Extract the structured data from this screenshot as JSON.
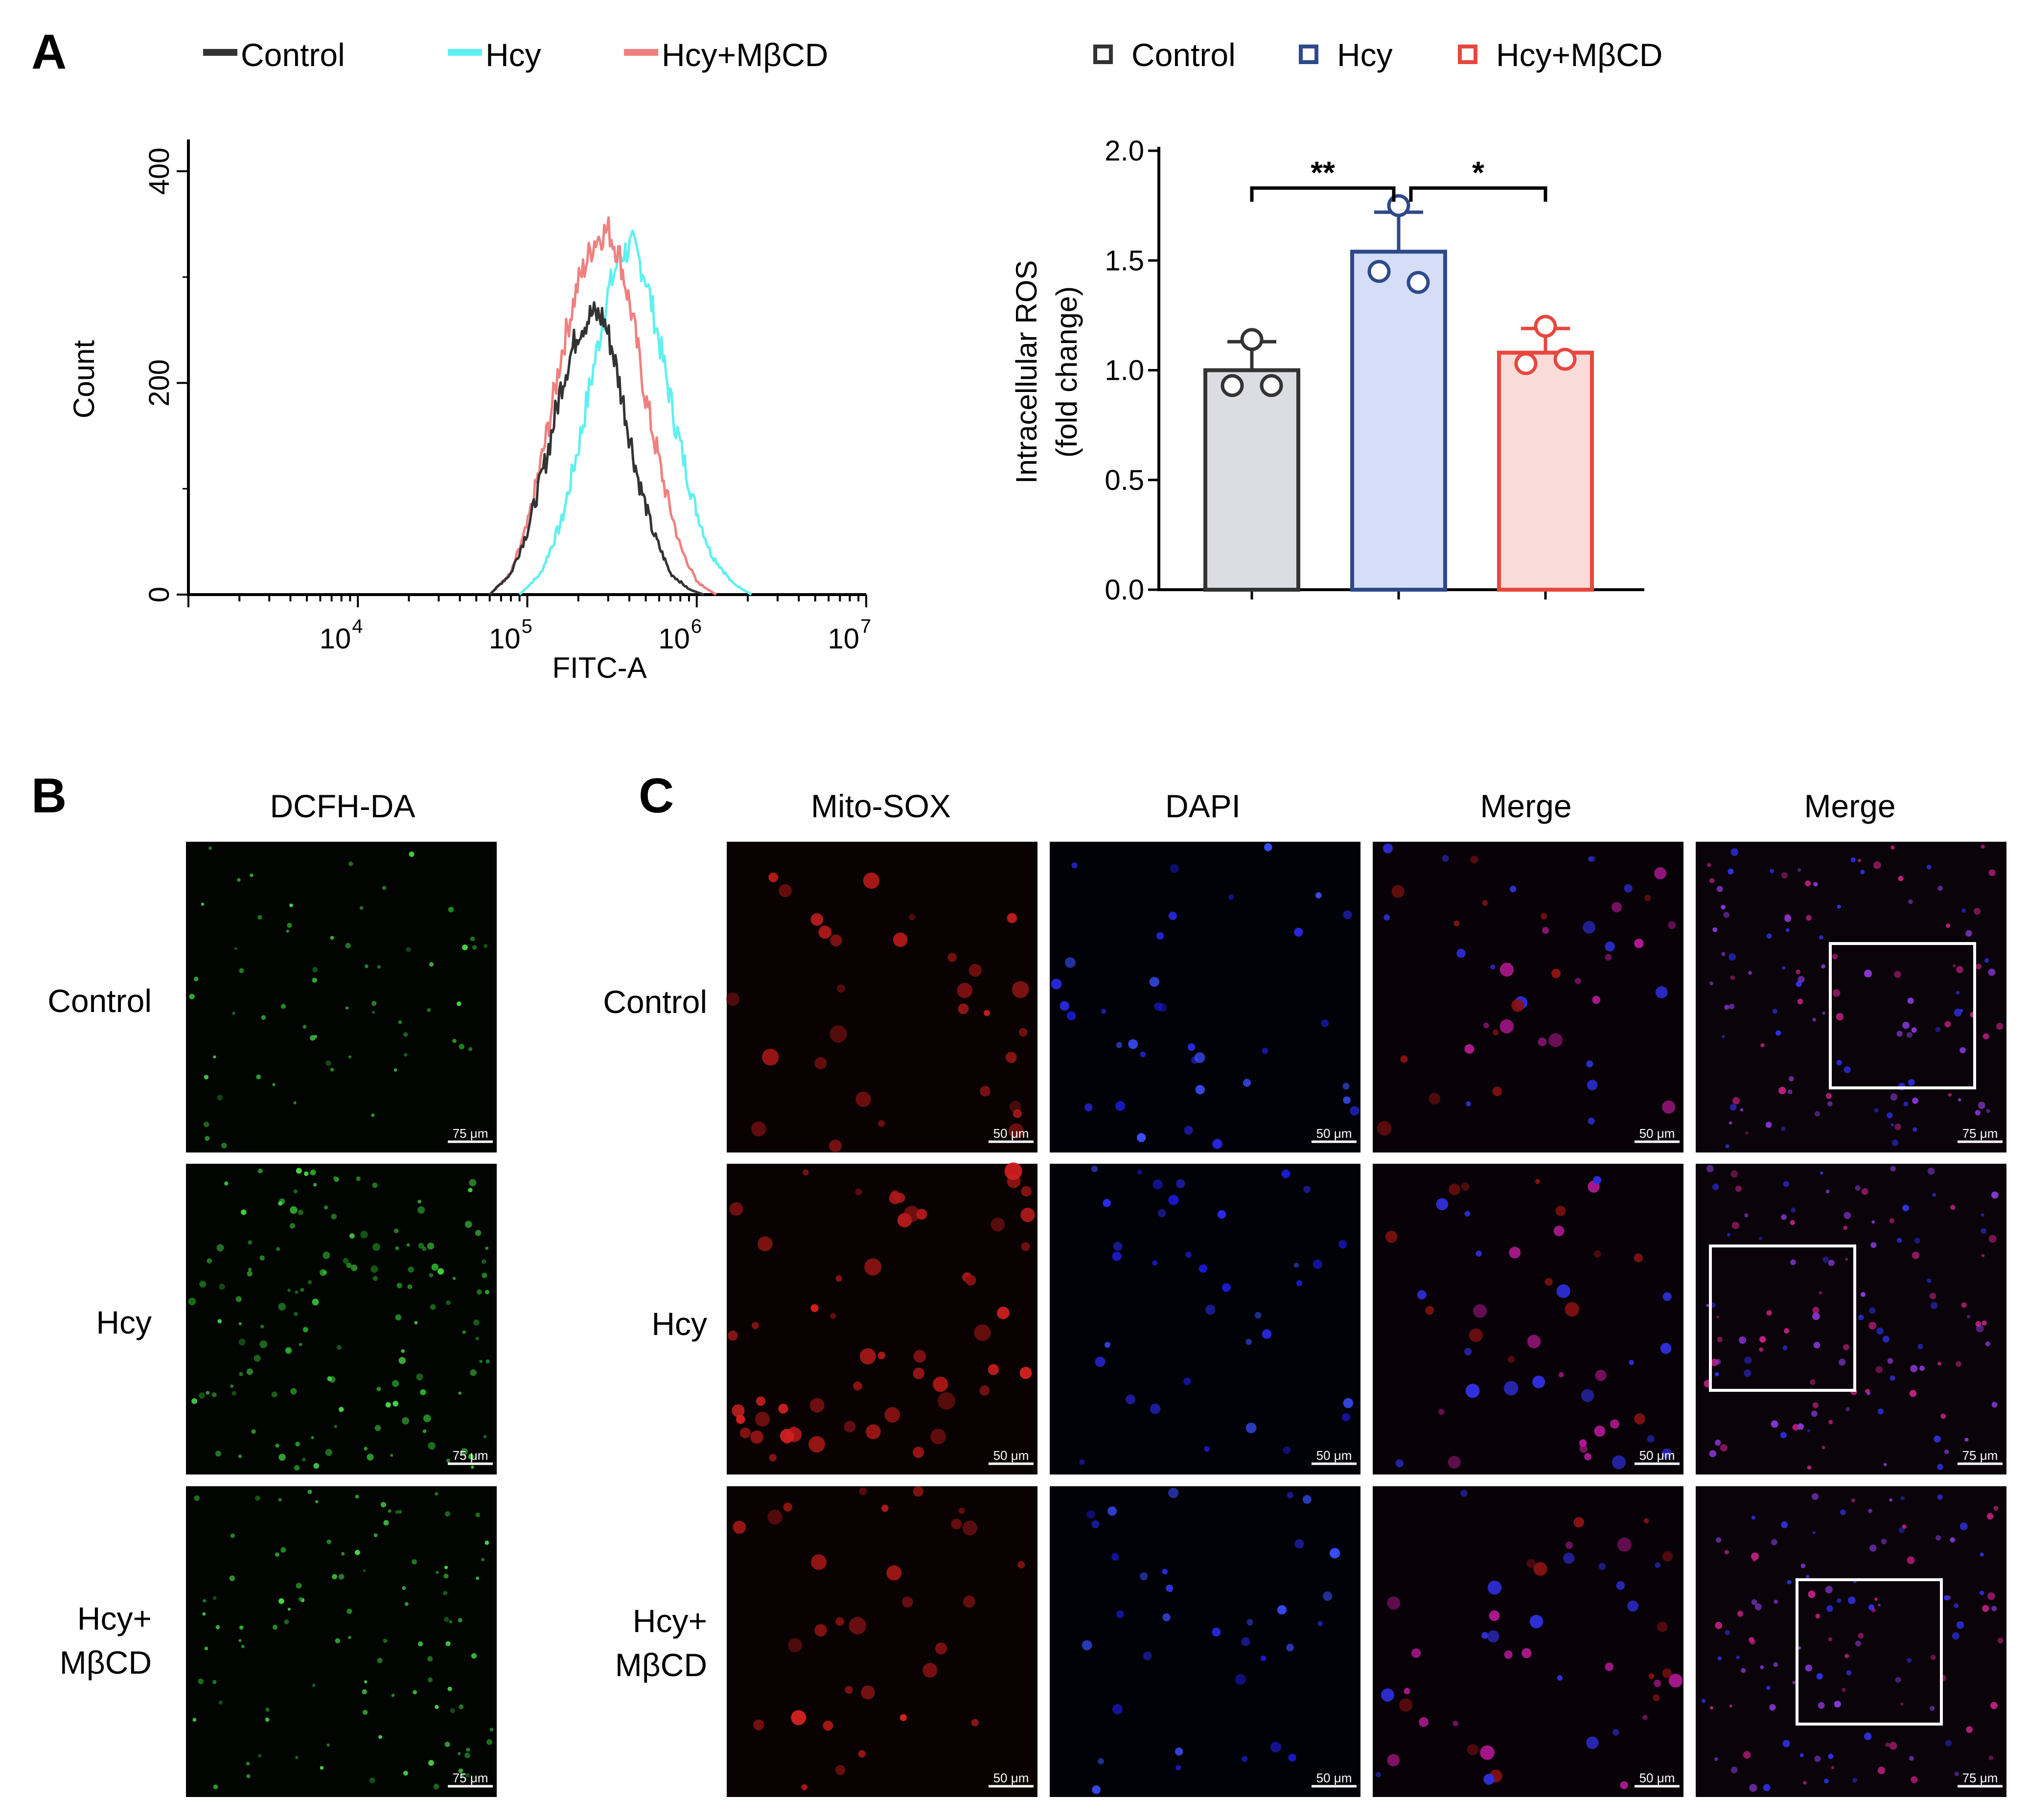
{
  "panels": {
    "A": {
      "letter": "A",
      "histogram_legend": [
        {
          "label": "Control",
          "color": "#333333"
        },
        {
          "label": "Hcy",
          "color": "#5ff0f0"
        },
        {
          "label": "Hcy+MβCD",
          "color": "#f08080"
        }
      ],
      "bar_legend": [
        {
          "label": "Control",
          "color": "#333333"
        },
        {
          "label": "Hcy",
          "color": "#2e4a8a"
        },
        {
          "label": "Hcy+MβCD",
          "color": "#e8473d"
        }
      ]
    },
    "B": {
      "letter": "B",
      "column_title": "DCFH-DA",
      "row_labels": [
        "Control",
        "Hcy",
        "Hcy+",
        "MβCD"
      ],
      "scale": "75 μm"
    },
    "C": {
      "letter": "C",
      "column_titles": [
        "Mito-SOX",
        "DAPI",
        "Merge",
        "Merge"
      ],
      "row_labels": [
        "Control",
        "Hcy",
        "Hcy+",
        "MβCD"
      ],
      "scale_small": "50 μm",
      "scale_large": "75 μm"
    }
  },
  "chart_data": [
    {
      "type": "line",
      "title": "",
      "xlabel": "FITC-A",
      "ylabel": "Count",
      "xscale": "log",
      "xlim": [
        1000,
        10000000
      ],
      "ylim": [
        0,
        430
      ],
      "x_tick_labels": [
        "10",
        "4",
        "10",
        "5",
        "10",
        "6",
        "10",
        "7"
      ],
      "y_tick_labels": [
        "0",
        "200",
        "400"
      ],
      "series": [
        {
          "name": "Control",
          "color": "#333333",
          "x": [
            60000,
            80000,
            100000,
            130000,
            160000,
            200000,
            240000,
            280000,
            320000,
            380000,
            450000,
            550000,
            700000,
            900000,
            1100000
          ],
          "y": [
            0,
            20,
            60,
            130,
            200,
            250,
            265,
            262,
            230,
            170,
            110,
            60,
            20,
            5,
            0
          ]
        },
        {
          "name": "Hcy",
          "color": "#5ff0f0",
          "x": [
            90000,
            120000,
            160000,
            200000,
            250000,
            300000,
            350000,
            420000,
            500000,
            600000,
            750000,
            950000,
            1200000,
            1600000,
            2100000
          ],
          "y": [
            0,
            20,
            70,
            140,
            220,
            285,
            320,
            330,
            300,
            240,
            160,
            90,
            40,
            12,
            0
          ]
        },
        {
          "name": "Hcy+MβCD",
          "color": "#f08080",
          "x": [
            60000,
            80000,
            100000,
            130000,
            160000,
            200000,
            250000,
            300000,
            350000,
            420000,
            500000,
            650000,
            800000,
            1000000,
            1300000
          ],
          "y": [
            0,
            20,
            65,
            150,
            230,
            295,
            335,
            345,
            320,
            260,
            185,
            100,
            45,
            12,
            0
          ]
        }
      ]
    },
    {
      "type": "bar",
      "title": "",
      "xlabel": "",
      "ylabel": "Intracellular ROS",
      "ylabel2": "(fold change)",
      "ylim": [
        0,
        2.0
      ],
      "y_tick_labels": [
        "0.0",
        "0.5",
        "1.0",
        "1.5",
        "2.0"
      ],
      "categories": [
        "Control",
        "Hcy",
        "Hcy+MβCD"
      ],
      "values": [
        1.0,
        1.54,
        1.08
      ],
      "errors": [
        0.13,
        0.18,
        0.11
      ],
      "points": [
        [
          1.14,
          0.93,
          0.93
        ],
        [
          1.75,
          1.45,
          1.4
        ],
        [
          1.2,
          1.03,
          1.05
        ]
      ],
      "edge_colors": [
        "#333333",
        "#2e4a8a",
        "#e8473d"
      ],
      "fill_colors": [
        "#dcdde3",
        "#d6def7",
        "#f9dbd8"
      ],
      "significance": [
        {
          "from": 0,
          "to": 1,
          "label": "**",
          "y": 1.87
        },
        {
          "from": 1,
          "to": 2,
          "label": "*",
          "y": 1.87
        }
      ]
    }
  ]
}
